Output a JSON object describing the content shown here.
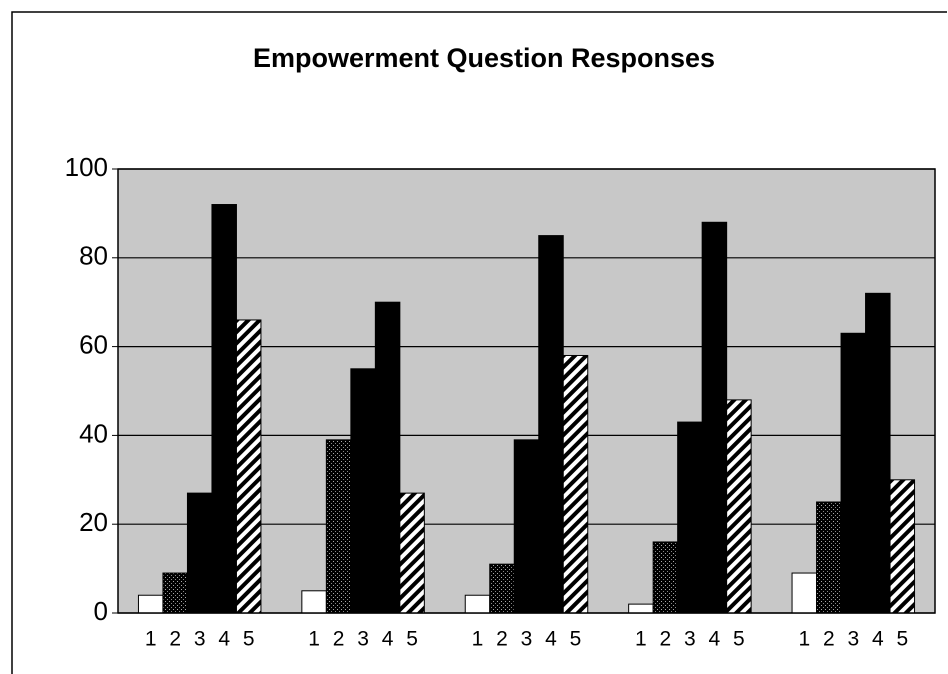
{
  "chart_data": {
    "type": "bar",
    "title": "Empowerment Question Responses",
    "categories": [
      null,
      null,
      null,
      null,
      null
    ],
    "series": [
      {
        "name": "1",
        "color": "#ffffff",
        "pattern": "solid",
        "values": [
          4,
          5,
          4,
          2,
          9
        ]
      },
      {
        "name": "2",
        "color": "#333333",
        "pattern": "dots",
        "values": [
          9,
          39,
          11,
          16,
          25
        ]
      },
      {
        "name": "3",
        "color": "#000000",
        "pattern": "solid",
        "values": [
          27,
          55,
          39,
          43,
          63
        ]
      },
      {
        "name": "4",
        "color": "#000000",
        "pattern": "solid",
        "values": [
          92,
          70,
          85,
          88,
          72
        ]
      },
      {
        "name": "5",
        "color": "#000000",
        "pattern": "hatch",
        "values": [
          66,
          27,
          58,
          48,
          30
        ]
      }
    ],
    "ylim": [
      0,
      100
    ],
    "yticks": [
      0,
      20,
      40,
      60,
      80,
      100
    ],
    "grid": true
  }
}
